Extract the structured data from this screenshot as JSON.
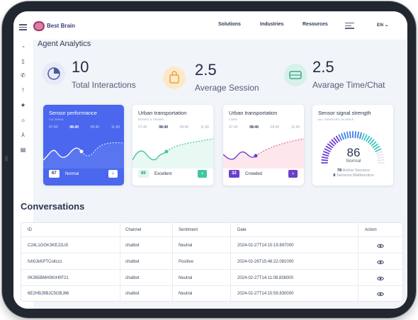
{
  "header": {
    "brand": "Best Brain",
    "nav": [
      "Solutions",
      "Industries",
      "Resources"
    ],
    "language": "EN"
  },
  "page_title": "Agent Analytics",
  "stats": [
    {
      "value": "10",
      "label": "Total Interactions",
      "icon": "pie-chart-icon",
      "color": "#e6eaf9"
    },
    {
      "value": "2.5",
      "label": "Average Session",
      "icon": "shopping-bag-icon",
      "color": "#fde9c8"
    },
    {
      "value": "2.5",
      "label": "Avarage Time/Chat",
      "icon": "drive-icon",
      "color": "#d7f1ea"
    }
  ],
  "cards": [
    {
      "title": "Sensor performance",
      "subtitle": "CA-2650A",
      "times": [
        "07:40",
        "08:40",
        "09:40",
        "11:40"
      ],
      "count": "67",
      "status": "Normal",
      "accent": "#4a67ee"
    },
    {
      "title": "Urban transportation",
      "subtitle": "BUSES & TRAMS",
      "times": [
        "07:40",
        "08:40",
        "09:40",
        "11:40"
      ],
      "count": "86",
      "status": "Excellent",
      "accent": "#3fc7a0"
    },
    {
      "title": "Urban transportation",
      "subtitle": "CARS",
      "times": [
        "07:40",
        "08:40",
        "09:40",
        "11:40"
      ],
      "count": "32",
      "status": "Crowded",
      "accent": "#6b3fc9"
    }
  ],
  "gauge": {
    "title": "Sensor signal strength",
    "subtitle": "ALL SENSORS IN AREA",
    "value": "86",
    "label": "Normal",
    "active_count": "78",
    "active_text": "Active Sensors",
    "malfunction_count": "8",
    "malfunction_text": "Sensors Malfunction"
  },
  "conversations": {
    "title": "Conversations",
    "columns": [
      "ID",
      "Channel",
      "Sentiment",
      "Date",
      "Action"
    ],
    "rows": [
      {
        "id": "C24L1GGK3KEJ2LI5",
        "channel": "chatbot",
        "sentiment": "Neutral",
        "date": "2024-02-27T14:10:19.897000"
      },
      {
        "id": "fsh0JkKPTCoitczz",
        "channel": "chatbot",
        "sentiment": "Positive",
        "date": "2024-02-26T15:46:22.081000"
      },
      {
        "id": "0K365BMH0KIH0F21",
        "channel": "chatbot",
        "sentiment": "Neutral",
        "date": "2024-02-27T14:11:08.836000"
      },
      {
        "id": "6E2HBJ9BJC5GBJ66",
        "channel": "chatbot",
        "sentiment": "Neutral",
        "date": "2024-02-27T14:10:59.830000"
      }
    ]
  },
  "sidebar_icons": [
    "menu-icon",
    "rss-icon",
    "device-icon",
    "phone-icon",
    "alert-icon",
    "star-icon",
    "sun-icon",
    "network-icon",
    "clipboard-icon"
  ]
}
